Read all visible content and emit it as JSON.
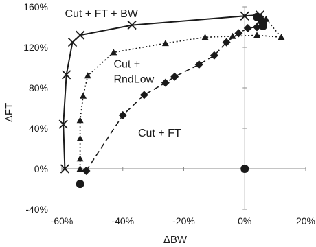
{
  "chart_data": {
    "type": "scatter",
    "title": "",
    "xlabel": "ΔBW",
    "ylabel": "ΔFT",
    "xlim": [
      -60,
      20
    ],
    "ylim": [
      -40,
      160
    ],
    "x_ticks": [
      -60,
      -40,
      -20,
      0,
      20
    ],
    "x_tick_labels": [
      "-60%",
      "-40%",
      "-20%",
      "0%",
      "20%"
    ],
    "y_ticks": [
      -40,
      0,
      40,
      80,
      120,
      160
    ],
    "y_tick_labels": [
      "-40%",
      "0%",
      "40%",
      "80%",
      "120%",
      "160%"
    ],
    "grid": false,
    "legend": "none",
    "series": [
      {
        "line_style": "solid",
        "marker": "x",
        "color": "#1a1a1a",
        "points": [
          [
            -59,
            0
          ],
          [
            -59.5,
            44
          ],
          [
            -58.5,
            93
          ],
          [
            -56.5,
            125
          ],
          [
            -54,
            132
          ],
          [
            -37,
            142
          ],
          [
            0,
            151
          ],
          [
            5,
            152
          ]
        ]
      },
      {
        "line_style": "dotted",
        "marker": "triangle",
        "color": "#1a1a1a",
        "points": [
          [
            -54,
            0
          ],
          [
            -54,
            10
          ],
          [
            -54,
            30
          ],
          [
            -54,
            48
          ],
          [
            -53,
            72
          ],
          [
            -51.5,
            92
          ],
          [
            -43,
            115
          ],
          [
            -26,
            124
          ],
          [
            -13,
            130
          ],
          [
            -4,
            131
          ],
          [
            4,
            132
          ],
          [
            12,
            130
          ],
          [
            7,
            148
          ],
          [
            5,
            146
          ]
        ]
      },
      {
        "line_style": "dashed",
        "marker": "diamond",
        "color": "#1a1a1a",
        "points": [
          [
            -52,
            -2
          ],
          [
            -40,
            53
          ],
          [
            -33,
            73
          ],
          [
            -26,
            85
          ],
          [
            -23,
            91
          ],
          [
            -15,
            103
          ],
          [
            -10,
            112
          ],
          [
            -6,
            125
          ],
          [
            -2,
            134
          ],
          [
            1,
            139
          ],
          [
            4,
            140
          ],
          [
            6,
            145
          ],
          [
            5,
            150
          ]
        ]
      },
      {
        "line_style": "none",
        "marker": "circle",
        "color": "#1a1a1a",
        "points": [
          [
            -54,
            -15
          ],
          [
            0,
            0
          ],
          [
            4,
            150
          ],
          [
            6,
            144
          ],
          [
            6,
            141
          ]
        ]
      }
    ],
    "annotations": [
      {
        "text": "Cut + FT + BW",
        "x": -59,
        "y": 150
      },
      {
        "text": "Cut +",
        "x": -43,
        "y": 100
      },
      {
        "text": "RndLow",
        "x": -43,
        "y": 85
      },
      {
        "text": "Cut + FT",
        "x": -35,
        "y": 32
      }
    ]
  }
}
